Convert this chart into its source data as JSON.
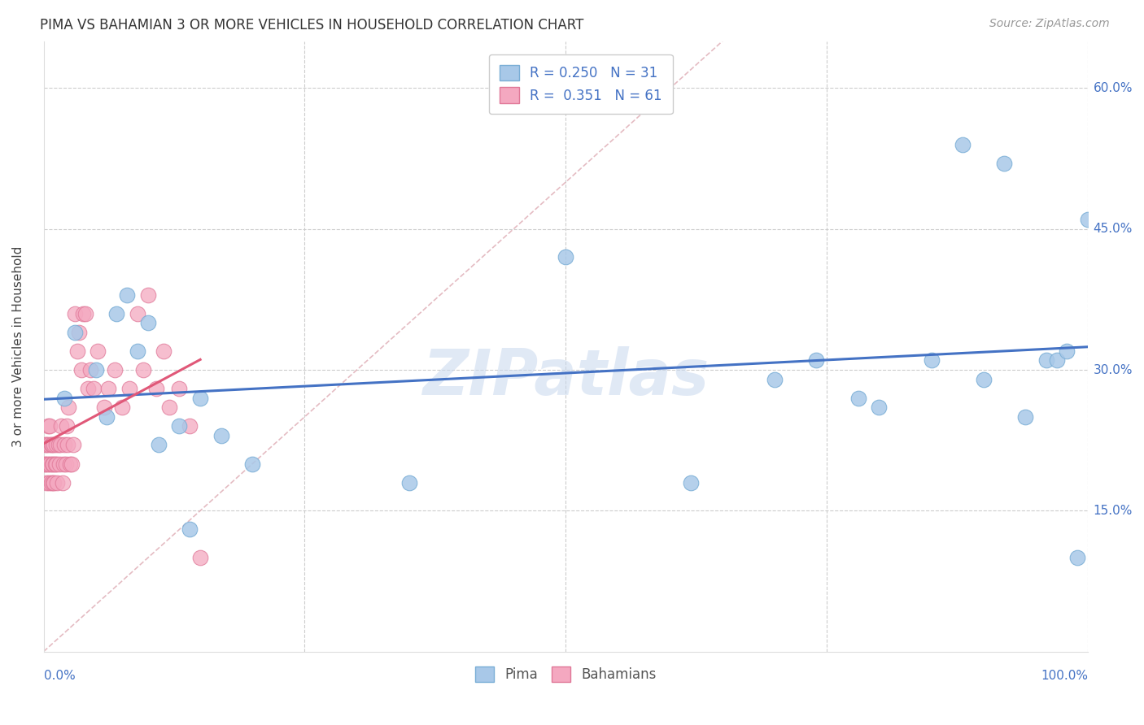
{
  "title": "PIMA VS BAHAMIAN 3 OR MORE VEHICLES IN HOUSEHOLD CORRELATION CHART",
  "source": "Source: ZipAtlas.com",
  "ylabel": "3 or more Vehicles in Household",
  "pima_color": "#a8c8e8",
  "pima_edge_color": "#7aaed6",
  "bahamas_color": "#f4a8c0",
  "bahamas_edge_color": "#e07898",
  "trend_pima_color": "#4472c4",
  "trend_bahamas_color": "#e05878",
  "diagonal_color": "#e0b0b8",
  "watermark": "ZIPatlas",
  "xlim": [
    0.0,
    1.0
  ],
  "ylim": [
    0.0,
    0.65
  ],
  "legend_label_pima": "R = 0.250   N = 31",
  "legend_label_bah": "R =  0.351   N = 61",
  "pima_x": [
    0.02,
    0.03,
    0.05,
    0.06,
    0.07,
    0.08,
    0.09,
    0.1,
    0.11,
    0.13,
    0.14,
    0.15,
    0.17,
    0.2,
    0.35,
    0.5,
    0.62,
    0.7,
    0.74,
    0.78,
    0.8,
    0.85,
    0.88,
    0.9,
    0.92,
    0.94,
    0.96,
    0.97,
    0.98,
    0.99,
    1.0
  ],
  "pima_y": [
    0.27,
    0.34,
    0.3,
    0.25,
    0.36,
    0.38,
    0.32,
    0.35,
    0.22,
    0.24,
    0.13,
    0.27,
    0.23,
    0.2,
    0.18,
    0.42,
    0.18,
    0.29,
    0.31,
    0.27,
    0.26,
    0.31,
    0.54,
    0.29,
    0.52,
    0.25,
    0.31,
    0.31,
    0.32,
    0.1,
    0.46
  ],
  "bahamas_x": [
    0.001,
    0.002,
    0.002,
    0.003,
    0.003,
    0.004,
    0.004,
    0.005,
    0.005,
    0.006,
    0.006,
    0.007,
    0.007,
    0.008,
    0.008,
    0.009,
    0.009,
    0.01,
    0.01,
    0.011,
    0.012,
    0.012,
    0.013,
    0.014,
    0.015,
    0.016,
    0.017,
    0.018,
    0.019,
    0.02,
    0.021,
    0.022,
    0.023,
    0.024,
    0.025,
    0.027,
    0.028,
    0.03,
    0.032,
    0.034,
    0.036,
    0.038,
    0.04,
    0.042,
    0.045,
    0.048,
    0.052,
    0.058,
    0.062,
    0.068,
    0.075,
    0.082,
    0.09,
    0.095,
    0.1,
    0.108,
    0.115,
    0.12,
    0.13,
    0.14,
    0.15
  ],
  "bahamas_y": [
    0.2,
    0.2,
    0.22,
    0.18,
    0.22,
    0.2,
    0.24,
    0.18,
    0.22,
    0.2,
    0.24,
    0.18,
    0.22,
    0.2,
    0.22,
    0.18,
    0.2,
    0.22,
    0.18,
    0.2,
    0.2,
    0.22,
    0.18,
    0.22,
    0.2,
    0.22,
    0.24,
    0.18,
    0.2,
    0.22,
    0.2,
    0.24,
    0.22,
    0.26,
    0.2,
    0.2,
    0.22,
    0.36,
    0.32,
    0.34,
    0.3,
    0.36,
    0.36,
    0.28,
    0.3,
    0.28,
    0.32,
    0.26,
    0.28,
    0.3,
    0.26,
    0.28,
    0.36,
    0.3,
    0.38,
    0.28,
    0.32,
    0.26,
    0.28,
    0.24,
    0.1
  ]
}
